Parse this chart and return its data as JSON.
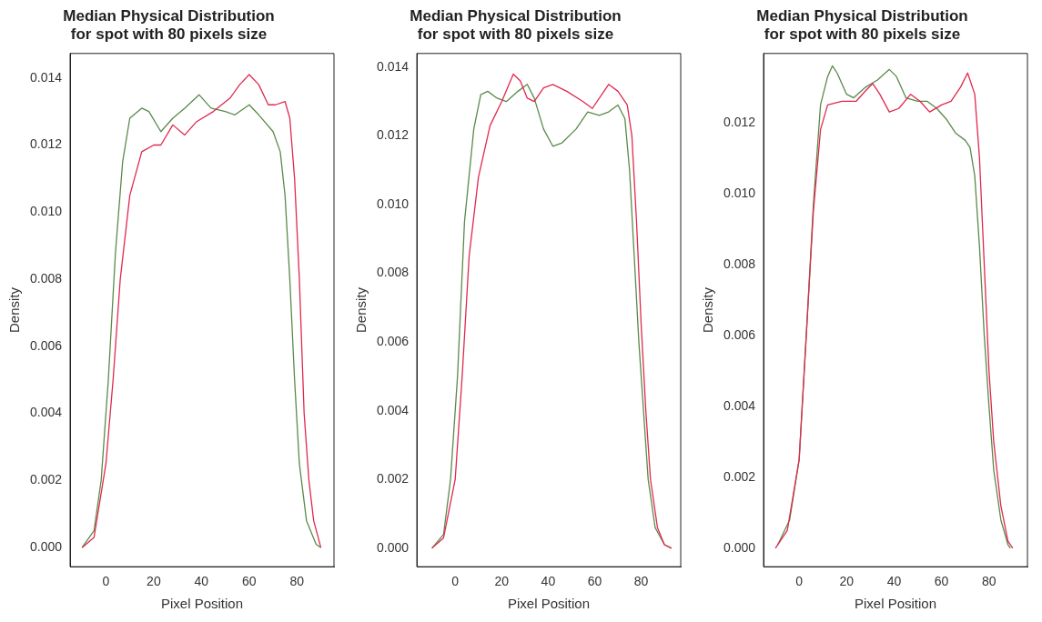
{
  "chart_data": [
    {
      "type": "line",
      "title": "Median Physical Distribution\nfor spot with 80 pixels size",
      "xlabel": "Pixel Position",
      "ylabel": "Density",
      "xlim": [
        -15,
        95.5
      ],
      "ylim": [
        -0.00057,
        0.01473
      ],
      "xticks": [
        0,
        20,
        40,
        60,
        80
      ],
      "yticks": [
        {
          "value": 0,
          "label": "0.000"
        },
        {
          "value": 0.002,
          "label": "0.002"
        },
        {
          "value": 0.004,
          "label": "0.004"
        },
        {
          "value": 0.006,
          "label": "0.006"
        },
        {
          "value": 0.008,
          "label": "0.008"
        },
        {
          "value": 0.01,
          "label": "0.010"
        },
        {
          "value": 0.012,
          "label": "0.012"
        },
        {
          "value": 0.014,
          "label": "0.014"
        }
      ],
      "grid": false,
      "legend": false,
      "series": [
        {
          "color": "#e0294f",
          "x": [
            -10,
            -5,
            0,
            3,
            6,
            10,
            15,
            20,
            23,
            28,
            33,
            38,
            45,
            52,
            56,
            60,
            64,
            68,
            71,
            75,
            77,
            79,
            81,
            83,
            85,
            87,
            90
          ],
          "values": [
            0,
            0.0003,
            0.0025,
            0.005,
            0.008,
            0.0105,
            0.0118,
            0.012,
            0.012,
            0.0126,
            0.0123,
            0.0127,
            0.013,
            0.0134,
            0.0138,
            0.0141,
            0.0138,
            0.0132,
            0.0132,
            0.0133,
            0.0128,
            0.011,
            0.008,
            0.004,
            0.002,
            0.0008,
            0
          ]
        },
        {
          "color": "#5a8a4a",
          "x": [
            -10,
            -5,
            -2,
            1,
            4,
            7,
            10,
            15,
            18,
            23,
            28,
            33,
            39,
            44,
            50,
            54,
            60,
            64,
            70,
            73,
            75,
            77,
            79,
            81,
            84,
            88,
            90
          ],
          "values": [
            0,
            0.0005,
            0.002,
            0.005,
            0.0088,
            0.0115,
            0.0128,
            0.0131,
            0.013,
            0.0124,
            0.0128,
            0.0131,
            0.0135,
            0.0131,
            0.013,
            0.0129,
            0.0132,
            0.0129,
            0.0124,
            0.0118,
            0.0105,
            0.008,
            0.005,
            0.0025,
            0.0008,
            0.0001,
            0
          ]
        }
      ]
    },
    {
      "type": "line",
      "title": "Median Physical Distribution\nfor spot with 80 pixels size",
      "xlabel": "Pixel Position",
      "ylabel": "Density",
      "xlim": [
        -16.5,
        97
      ],
      "ylim": [
        -0.00054,
        0.0144
      ],
      "xticks": [
        0,
        20,
        40,
        60,
        80
      ],
      "yticks": [
        {
          "value": 0,
          "label": "0.000"
        },
        {
          "value": 0.002,
          "label": "0.002"
        },
        {
          "value": 0.004,
          "label": "0.004"
        },
        {
          "value": 0.006,
          "label": "0.006"
        },
        {
          "value": 0.008,
          "label": "0.008"
        },
        {
          "value": 0.01,
          "label": "0.010"
        },
        {
          "value": 0.012,
          "label": "0.012"
        },
        {
          "value": 0.014,
          "label": "0.014"
        }
      ],
      "grid": false,
      "legend": false,
      "series": [
        {
          "color": "#e0294f",
          "x": [
            -10,
            -5,
            0,
            3,
            6,
            10,
            15,
            20,
            25,
            28,
            31,
            34,
            38,
            42,
            48,
            55,
            59,
            63,
            66,
            70,
            74,
            76,
            78,
            80,
            82,
            84,
            87,
            90,
            93
          ],
          "values": [
            0,
            0.0003,
            0.002,
            0.005,
            0.0085,
            0.0108,
            0.0123,
            0.013,
            0.0138,
            0.0136,
            0.0131,
            0.013,
            0.0134,
            0.0135,
            0.0133,
            0.013,
            0.0128,
            0.0132,
            0.0135,
            0.0133,
            0.0129,
            0.012,
            0.0095,
            0.0065,
            0.004,
            0.002,
            0.0006,
            0.0001,
            0
          ]
        },
        {
          "color": "#5a8a4a",
          "x": [
            -10,
            -5,
            -2,
            1,
            4,
            8,
            11,
            14,
            18,
            22,
            27,
            31,
            34,
            38,
            42,
            46,
            52,
            57,
            62,
            66,
            70,
            73,
            75,
            77,
            79,
            81,
            83,
            86,
            90,
            93
          ],
          "values": [
            0,
            0.0004,
            0.002,
            0.005,
            0.0095,
            0.0122,
            0.0132,
            0.0133,
            0.0131,
            0.013,
            0.0133,
            0.0135,
            0.0131,
            0.0122,
            0.0117,
            0.0118,
            0.0122,
            0.0127,
            0.0126,
            0.0127,
            0.0129,
            0.0125,
            0.011,
            0.0085,
            0.006,
            0.004,
            0.002,
            0.0006,
            0.0001,
            0
          ]
        }
      ]
    },
    {
      "type": "line",
      "title": "Median Physical Distribution\nfor spot with 80 pixels size",
      "xlabel": "Pixel Position",
      "ylabel": "Density",
      "xlim": [
        -15,
        96.2
      ],
      "ylim": [
        -0.00052,
        0.01395
      ],
      "xticks": [
        0,
        20,
        40,
        60,
        80
      ],
      "yticks": [
        {
          "value": 0,
          "label": "0.000"
        },
        {
          "value": 0.002,
          "label": "0.002"
        },
        {
          "value": 0.004,
          "label": "0.004"
        },
        {
          "value": 0.006,
          "label": "0.006"
        },
        {
          "value": 0.008,
          "label": "0.008"
        },
        {
          "value": 0.01,
          "label": "0.010"
        },
        {
          "value": 0.012,
          "label": "0.012"
        }
      ],
      "grid": false,
      "legend": false,
      "series": [
        {
          "color": "#e0294f",
          "x": [
            -10,
            -5,
            0,
            3,
            6,
            9,
            12,
            18,
            24,
            28,
            31,
            34,
            38,
            42,
            47,
            51,
            55,
            60,
            64,
            68,
            71,
            74,
            76,
            78,
            80,
            82,
            85,
            88,
            90
          ],
          "values": [
            0,
            0.0005,
            0.0025,
            0.006,
            0.0095,
            0.0118,
            0.0125,
            0.0126,
            0.0126,
            0.0129,
            0.0131,
            0.0128,
            0.0123,
            0.0124,
            0.0128,
            0.0126,
            0.0123,
            0.0125,
            0.0126,
            0.013,
            0.0134,
            0.0128,
            0.011,
            0.008,
            0.005,
            0.003,
            0.0012,
            0.0002,
            0
          ]
        },
        {
          "color": "#5a8a4a",
          "x": [
            -9,
            -4,
            0,
            3,
            6,
            9,
            12,
            14,
            16,
            20,
            23,
            28,
            33,
            38,
            41,
            45,
            50,
            54,
            58,
            62,
            66,
            70,
            72,
            74,
            76,
            78,
            80,
            82,
            85,
            88,
            89
          ],
          "values": [
            0.0001,
            0.0008,
            0.0025,
            0.006,
            0.0097,
            0.0125,
            0.0133,
            0.0136,
            0.0134,
            0.0128,
            0.0127,
            0.013,
            0.0132,
            0.0135,
            0.0133,
            0.0127,
            0.0126,
            0.0126,
            0.0124,
            0.0121,
            0.0117,
            0.0115,
            0.0113,
            0.0105,
            0.0085,
            0.006,
            0.004,
            0.0022,
            0.0008,
            0.0001,
            0
          ]
        }
      ]
    }
  ]
}
